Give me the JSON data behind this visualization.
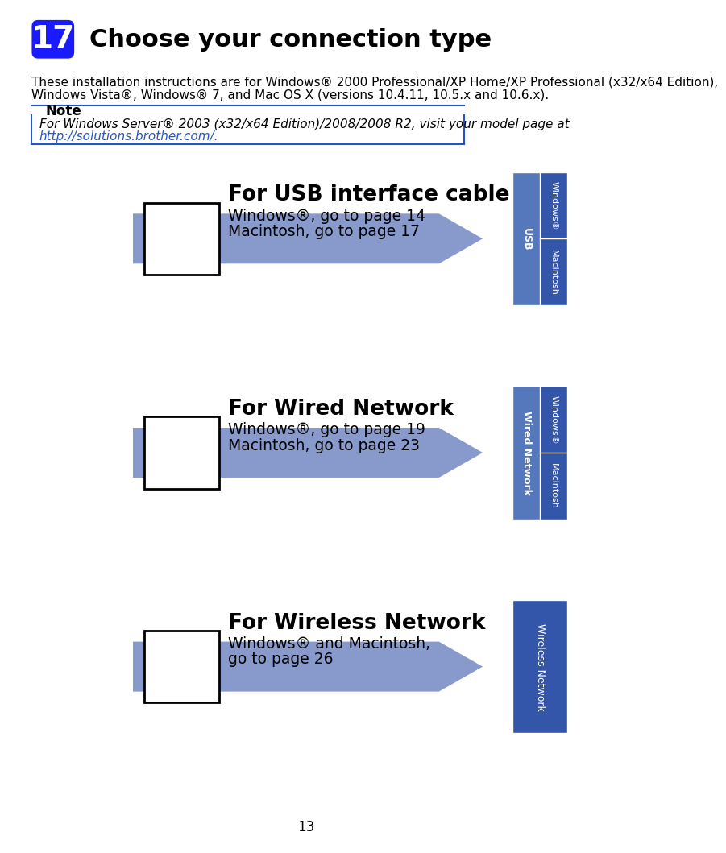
{
  "title_num": "17",
  "title_text": "Choose your connection type",
  "title_num_bg": "#1a1aff",
  "body_text1": "These installation instructions are for Windows® 2000 Professional/XP Home/XP Professional (x32/x64 Edition),",
  "body_text2": "Windows Vista®, Windows® 7, and Mac OS X (versions 10.4.11, 10.5.x and 10.6.x).",
  "note_label": "Note",
  "note_text1": "For Windows Server® 2003 (x32/x64 Edition)/2008/2008 R2, visit your model page at",
  "note_text2": "http://solutions.brother.com/.",
  "note_border_color": "#2255cc",
  "sections": [
    {
      "title": "For USB interface cable",
      "line1": "Windows®, go to page 14",
      "line2": "Macintosh, go to page 17",
      "tab_labels": [
        "Windows®",
        "Macintosh"
      ],
      "tab_group": "USB"
    },
    {
      "title": "For Wired Network",
      "line1": "Windows®, go to page 19",
      "line2": "Macintosh, go to page 23",
      "tab_labels": [
        "Windows®",
        "Macintosh"
      ],
      "tab_group": "Wired Network"
    },
    {
      "title": "For Wireless Network",
      "line1": "Windows® and Macintosh,",
      "line2": "go to page 26",
      "tab_labels": [],
      "tab_group": "Wireless Network"
    }
  ],
  "arrow_color": "#8899cc",
  "tab_bg_dark": "#3355aa",
  "tab_bg_light": "#5577bb",
  "tab_text_color": "#ffffff",
  "page_num": "13",
  "bg_color": "#ffffff"
}
